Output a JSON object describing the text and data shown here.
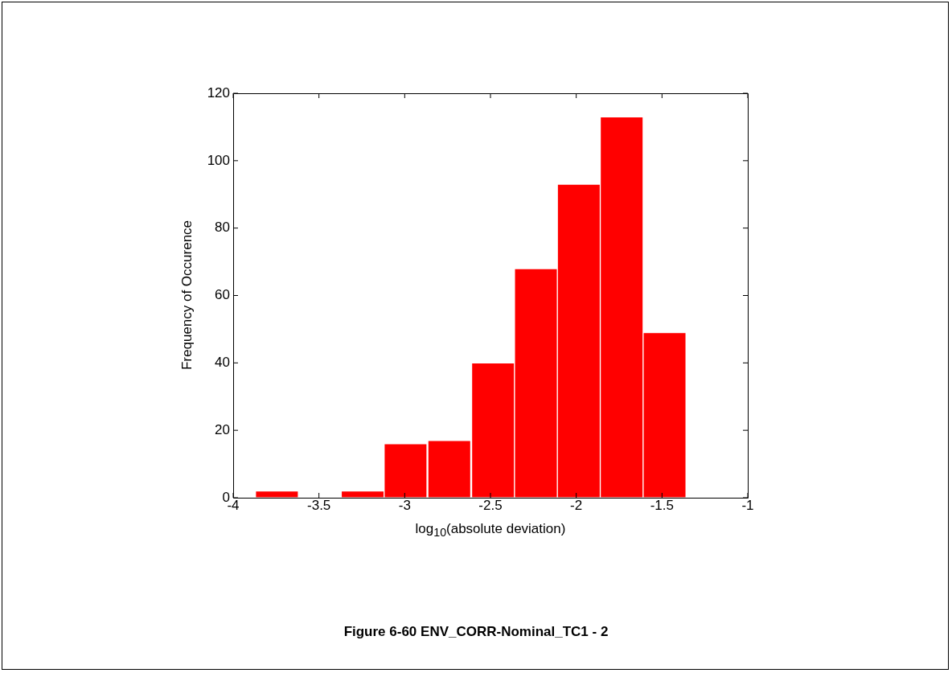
{
  "chart_data": {
    "type": "histogram",
    "title": "Figure 6-60 ENV_CORR-Nominal_TC1 - 2",
    "xlabel": "log$_{10}$(absolute deviation)",
    "ylabel": "Frequency of Occurence",
    "bins": [
      -3.87,
      -3.62,
      -3.37,
      -3.12,
      -2.87,
      -2.61,
      -2.36,
      -2.11,
      -1.86,
      -1.61,
      -1.36
    ],
    "values": [
      2,
      0,
      2,
      16,
      17,
      40,
      68,
      93,
      113,
      49
    ],
    "color": "#ff0000",
    "xlim": [
      -4,
      -1
    ],
    "xticks": [
      -4,
      -3.5,
      -3,
      -2.5,
      -2,
      -1.5,
      -1
    ],
    "ylim": [
      0,
      120
    ],
    "yticks": [
      0,
      20,
      40,
      60,
      80,
      100,
      120
    ],
    "grid": false,
    "legend": false
  }
}
